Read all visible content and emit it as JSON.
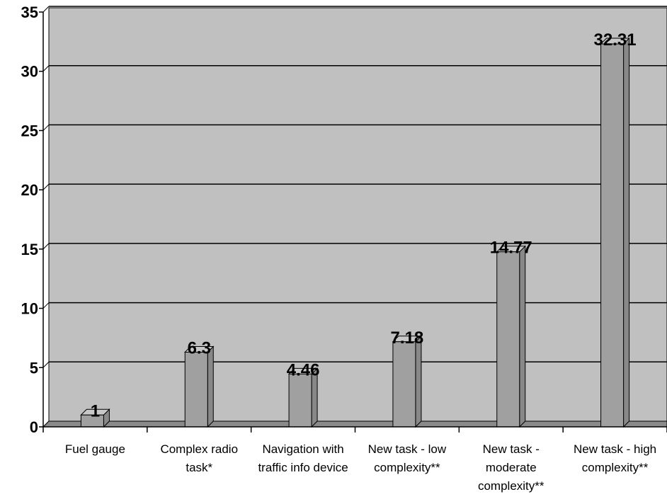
{
  "chart_data": {
    "type": "bar",
    "categories": [
      "Fuel gauge",
      "Complex radio task*",
      "Navigation with traffic info device",
      "New task - low complexity**",
      "New task - moderate complexity**",
      "New task - high complexity**"
    ],
    "values": [
      1,
      6.3,
      4.46,
      7.18,
      14.77,
      32.31
    ],
    "value_labels": [
      "1",
      "6.3",
      "4.46",
      "7.18",
      "14.77",
      "32.31"
    ],
    "ylim": [
      0,
      35
    ],
    "yticks": [
      0,
      5,
      10,
      15,
      20,
      25,
      30,
      35
    ],
    "grid": true,
    "legend": "none",
    "colors": {
      "plot_area": "#c0c0c0",
      "bar_front": "#a0a0a0",
      "bar_top": "#c8c8c8",
      "bar_side": "#888888",
      "floor": "#8a8a8a"
    }
  }
}
